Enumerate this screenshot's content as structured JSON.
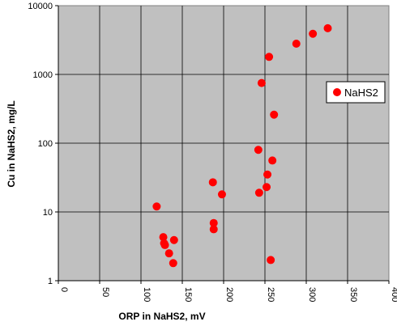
{
  "chart_data": {
    "type": "scatter",
    "title": "",
    "xlabel": "ORP in NaHS2, mV",
    "ylabel": "Cu in NaHS2, mg/L",
    "xlim": [
      0,
      400
    ],
    "ylim": [
      1,
      10000
    ],
    "y_scale": "log",
    "x_ticks": [
      "0",
      "50",
      "100",
      "150",
      "200",
      "250",
      "300",
      "350",
      "400"
    ],
    "y_ticks": [
      "1",
      "10",
      "100",
      "1000",
      "10000"
    ],
    "grid": true,
    "plot_background": "#c0c0c0",
    "marker_color": "#ff0000",
    "legend_position": "right",
    "series": [
      {
        "name": "NaHS2",
        "points": [
          {
            "x": 119,
            "y": 12
          },
          {
            "x": 127,
            "y": 4.3
          },
          {
            "x": 128,
            "y": 3.5
          },
          {
            "x": 129,
            "y": 3.3
          },
          {
            "x": 134,
            "y": 2.5
          },
          {
            "x": 139,
            "y": 1.8
          },
          {
            "x": 140,
            "y": 3.9
          },
          {
            "x": 187,
            "y": 27
          },
          {
            "x": 188,
            "y": 6.9
          },
          {
            "x": 188,
            "y": 5.6
          },
          {
            "x": 198,
            "y": 18
          },
          {
            "x": 242,
            "y": 80
          },
          {
            "x": 243,
            "y": 19
          },
          {
            "x": 246,
            "y": 750
          },
          {
            "x": 252,
            "y": 23
          },
          {
            "x": 253,
            "y": 35
          },
          {
            "x": 255,
            "y": 1800
          },
          {
            "x": 257,
            "y": 2.0
          },
          {
            "x": 259,
            "y": 56
          },
          {
            "x": 261,
            "y": 260
          },
          {
            "x": 288,
            "y": 2800
          },
          {
            "x": 308,
            "y": 3900
          },
          {
            "x": 326,
            "y": 4700
          }
        ]
      }
    ]
  }
}
